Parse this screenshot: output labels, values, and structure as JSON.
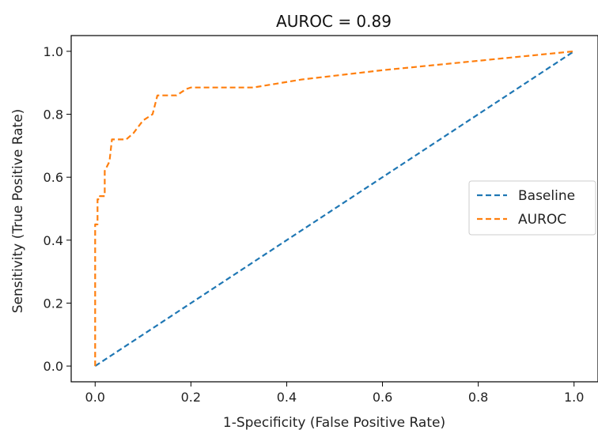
{
  "chart_data": {
    "type": "line",
    "title": "AUROC = 0.89",
    "xlabel": "1-Specificity (False Positive Rate)",
    "ylabel": "Sensitivity (True Positive Rate)",
    "xlim": [
      -0.05,
      1.05
    ],
    "ylim": [
      -0.05,
      1.05
    ],
    "xticks": [
      "0.0",
      "0.2",
      "0.4",
      "0.6",
      "0.8",
      "1.0"
    ],
    "yticks": [
      "0.0",
      "0.2",
      "0.4",
      "0.6",
      "0.8",
      "1.0"
    ],
    "grid": false,
    "legend_position": "center-right",
    "series": [
      {
        "name": "Baseline",
        "color": "#1f77b4",
        "dash": "dashed",
        "x": [
          0,
          1
        ],
        "y": [
          0,
          1
        ]
      },
      {
        "name": "AUROC",
        "color": "#ff7f0e",
        "dash": "dashed",
        "x": [
          0,
          0,
          0.005,
          0.005,
          0.01,
          0.01,
          0.02,
          0.02,
          0.03,
          0.035,
          0.04,
          0.065,
          0.08,
          0.1,
          0.12,
          0.13,
          0.14,
          0.17,
          0.19,
          0.2,
          0.33,
          0.43,
          0.6,
          0.8,
          1.0
        ],
        "y": [
          0,
          0.45,
          0.45,
          0.53,
          0.53,
          0.54,
          0.54,
          0.62,
          0.65,
          0.72,
          0.72,
          0.72,
          0.74,
          0.78,
          0.8,
          0.86,
          0.86,
          0.86,
          0.88,
          0.885,
          0.885,
          0.91,
          0.94,
          0.97,
          1.0
        ]
      }
    ]
  }
}
